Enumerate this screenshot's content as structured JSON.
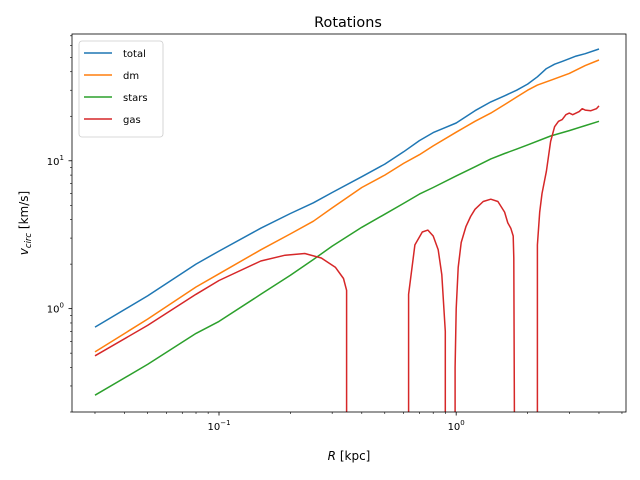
{
  "chart_data": {
    "type": "line",
    "title": "Rotations",
    "xlabel": "R [kpc]",
    "ylabel": "v_circ [km/s]",
    "xscale": "log",
    "yscale": "log",
    "xlim": [
      0.024,
      5.2
    ],
    "ylim": [
      0.2,
      72
    ],
    "grid": false,
    "legend_position": "upper-left",
    "x_ticks": [
      {
        "value": 0.1,
        "label": "10",
        "exp": "−1"
      },
      {
        "value": 1,
        "label": "10",
        "exp": "0"
      }
    ],
    "y_ticks": [
      {
        "value": 1,
        "label": "10",
        "exp": "0"
      },
      {
        "value": 10,
        "label": "10",
        "exp": "1"
      }
    ],
    "series": [
      {
        "name": "total",
        "color": "#1f77b4",
        "points": [
          [
            0.03,
            0.75
          ],
          [
            0.05,
            1.22
          ],
          [
            0.08,
            2.0
          ],
          [
            0.1,
            2.45
          ],
          [
            0.15,
            3.5
          ],
          [
            0.2,
            4.4
          ],
          [
            0.25,
            5.2
          ],
          [
            0.3,
            6.1
          ],
          [
            0.4,
            7.8
          ],
          [
            0.5,
            9.5
          ],
          [
            0.6,
            11.5
          ],
          [
            0.7,
            13.7
          ],
          [
            0.8,
            15.5
          ],
          [
            1.0,
            18.0
          ],
          [
            1.2,
            21.8
          ],
          [
            1.4,
            25.0
          ],
          [
            1.6,
            27.5
          ],
          [
            1.8,
            30.0
          ],
          [
            2.0,
            33.0
          ],
          [
            2.2,
            37.0
          ],
          [
            2.4,
            42.0
          ],
          [
            2.6,
            45.0
          ],
          [
            2.8,
            47.0
          ],
          [
            3.0,
            49.0
          ],
          [
            3.2,
            51.0
          ],
          [
            3.5,
            53.0
          ],
          [
            4.0,
            57.0
          ]
        ]
      },
      {
        "name": "dm",
        "color": "#ff7f0e",
        "points": [
          [
            0.03,
            0.51
          ],
          [
            0.05,
            0.85
          ],
          [
            0.08,
            1.4
          ],
          [
            0.1,
            1.72
          ],
          [
            0.15,
            2.5
          ],
          [
            0.2,
            3.2
          ],
          [
            0.25,
            3.9
          ],
          [
            0.3,
            4.8
          ],
          [
            0.4,
            6.6
          ],
          [
            0.5,
            8.0
          ],
          [
            0.6,
            9.6
          ],
          [
            0.7,
            11.0
          ],
          [
            0.8,
            12.6
          ],
          [
            1.0,
            15.6
          ],
          [
            1.2,
            18.5
          ],
          [
            1.4,
            21.0
          ],
          [
            1.6,
            24.0
          ],
          [
            1.8,
            27.0
          ],
          [
            2.0,
            30.0
          ],
          [
            2.2,
            32.5
          ],
          [
            2.5,
            35.0
          ],
          [
            3.0,
            39.0
          ],
          [
            3.5,
            44.0
          ],
          [
            4.0,
            48.0
          ]
        ]
      },
      {
        "name": "stars",
        "color": "#2ca02c",
        "points": [
          [
            0.03,
            0.26
          ],
          [
            0.05,
            0.42
          ],
          [
            0.08,
            0.68
          ],
          [
            0.1,
            0.82
          ],
          [
            0.15,
            1.25
          ],
          [
            0.2,
            1.68
          ],
          [
            0.25,
            2.15
          ],
          [
            0.3,
            2.65
          ],
          [
            0.4,
            3.55
          ],
          [
            0.5,
            4.35
          ],
          [
            0.6,
            5.15
          ],
          [
            0.7,
            5.95
          ],
          [
            0.8,
            6.6
          ],
          [
            1.0,
            7.9
          ],
          [
            1.2,
            9.1
          ],
          [
            1.4,
            10.3
          ],
          [
            1.6,
            11.2
          ],
          [
            1.8,
            12.0
          ],
          [
            2.0,
            12.8
          ],
          [
            2.5,
            14.7
          ],
          [
            3.0,
            16.0
          ],
          [
            3.5,
            17.3
          ],
          [
            4.0,
            18.5
          ]
        ]
      },
      {
        "name": "gas",
        "color": "#d62728",
        "segments": [
          [
            [
              0.03,
              0.48
            ],
            [
              0.05,
              0.77
            ],
            [
              0.08,
              1.25
            ],
            [
              0.1,
              1.55
            ],
            [
              0.15,
              2.1
            ],
            [
              0.19,
              2.3
            ],
            [
              0.23,
              2.36
            ],
            [
              0.27,
              2.2
            ],
            [
              0.31,
              1.9
            ],
            [
              0.335,
              1.6
            ],
            [
              0.345,
              1.33
            ],
            [
              0.345,
              0.2
            ]
          ],
          [
            [
              0.63,
              0.2
            ],
            [
              0.63,
              1.25
            ],
            [
              0.67,
              2.7
            ],
            [
              0.72,
              3.3
            ],
            [
              0.76,
              3.4
            ],
            [
              0.8,
              3.1
            ],
            [
              0.84,
              2.5
            ],
            [
              0.87,
              1.7
            ],
            [
              0.9,
              0.7
            ],
            [
              0.9,
              0.2
            ]
          ],
          [
            [
              0.99,
              0.2
            ],
            [
              0.99,
              0.4
            ],
            [
              1.0,
              1.0
            ],
            [
              1.02,
              1.9
            ],
            [
              1.05,
              2.8
            ],
            [
              1.1,
              3.6
            ],
            [
              1.15,
              4.2
            ],
            [
              1.2,
              4.7
            ],
            [
              1.3,
              5.3
            ],
            [
              1.4,
              5.5
            ],
            [
              1.5,
              5.3
            ],
            [
              1.6,
              4.5
            ],
            [
              1.65,
              3.8
            ],
            [
              1.7,
              3.5
            ],
            [
              1.74,
              3.1
            ],
            [
              1.75,
              2.2
            ],
            [
              1.76,
              0.2
            ]
          ],
          [
            [
              2.2,
              0.2
            ],
            [
              2.2,
              2.7
            ],
            [
              2.25,
              4.5
            ],
            [
              2.3,
              6.0
            ],
            [
              2.4,
              8.5
            ],
            [
              2.5,
              13.5
            ],
            [
              2.6,
              17.0
            ],
            [
              2.7,
              18.5
            ],
            [
              2.8,
              19.0
            ],
            [
              2.9,
              20.5
            ],
            [
              3.0,
              21.0
            ],
            [
              3.1,
              20.5
            ],
            [
              3.3,
              21.5
            ],
            [
              3.4,
              22.5
            ],
            [
              3.5,
              22.0
            ],
            [
              3.7,
              21.8
            ],
            [
              3.9,
              22.5
            ],
            [
              4.0,
              23.5
            ]
          ]
        ]
      }
    ]
  }
}
